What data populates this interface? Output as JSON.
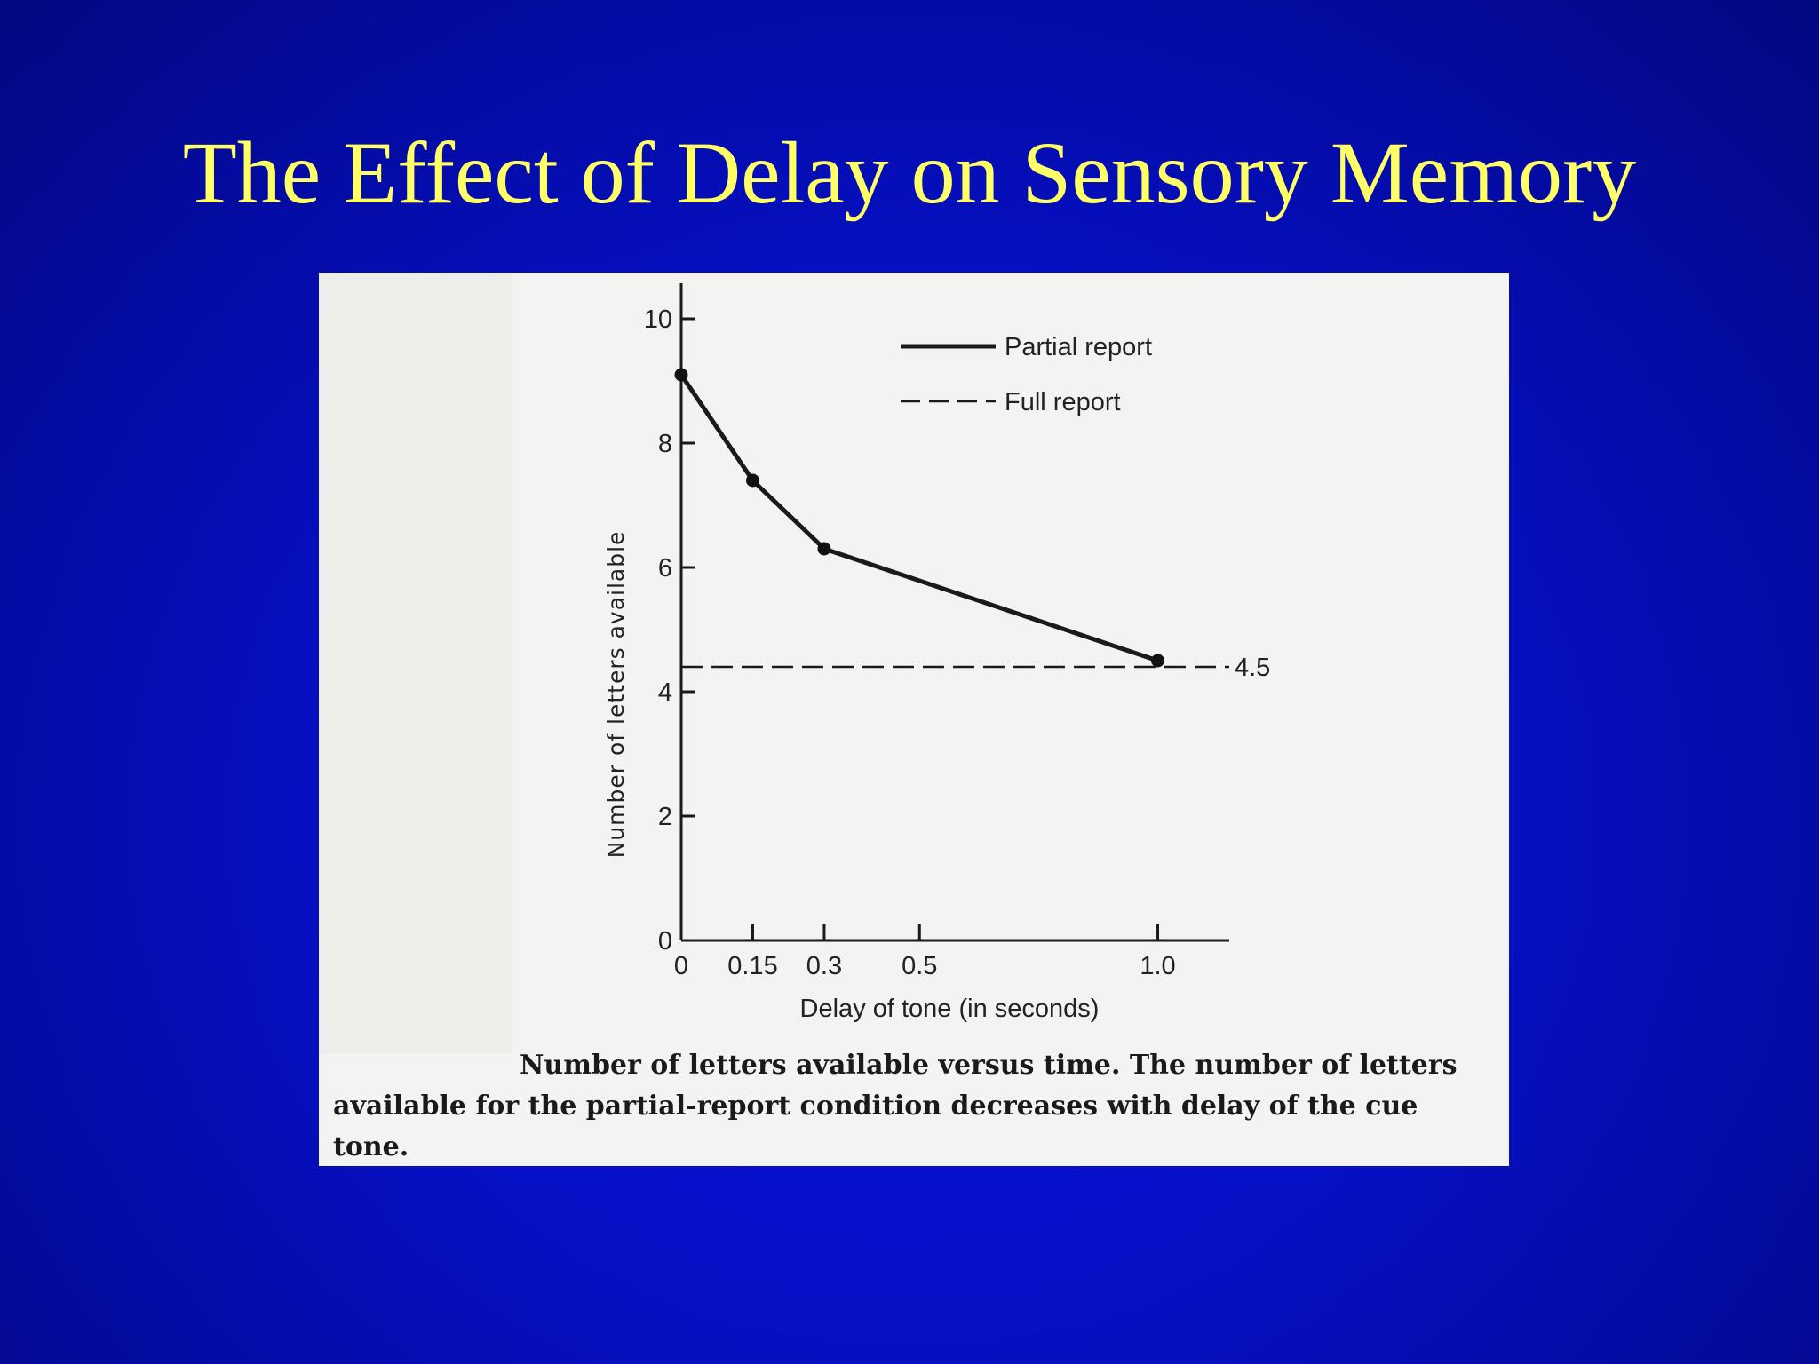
{
  "slide": {
    "title": "The Effect of Delay on Sensory Memory"
  },
  "chart_data": {
    "type": "line",
    "xlabel": "Delay of tone (in seconds)",
    "ylabel": "Number of letters available",
    "xlim": [
      0,
      1.15
    ],
    "ylim": [
      0,
      10.5
    ],
    "x_ticks": [
      0,
      0.15,
      0.3,
      0.5,
      1.0
    ],
    "x_tick_labels": [
      "0",
      "0.15",
      "0.3",
      "0.5",
      "1.0"
    ],
    "y_ticks": [
      0,
      2,
      4,
      6,
      8,
      10
    ],
    "y_tick_labels": [
      "0",
      "2",
      "4",
      "6",
      "8",
      "10"
    ],
    "series": [
      {
        "name": "Partial report",
        "style": "solid",
        "x": [
          0,
          0.15,
          0.3,
          1.0
        ],
        "y": [
          9.1,
          7.4,
          6.3,
          4.5
        ]
      },
      {
        "name": "Full report",
        "style": "dashed",
        "x": [
          0,
          1.15
        ],
        "y": [
          4.4,
          4.4
        ]
      }
    ],
    "annotations": [
      {
        "text": "4.5",
        "x": 1.15,
        "y": 4.4
      }
    ],
    "legend": "top-right",
    "grid": false
  },
  "caption": {
    "text": "Number of letters available versus time. The number of letters available for the partial-report condition decreases with delay of the cue tone."
  },
  "colors": {
    "background": "#0610c4",
    "title": "#ffff66",
    "panel": "#f3f3f1",
    "ink": "#1a1a1a"
  }
}
